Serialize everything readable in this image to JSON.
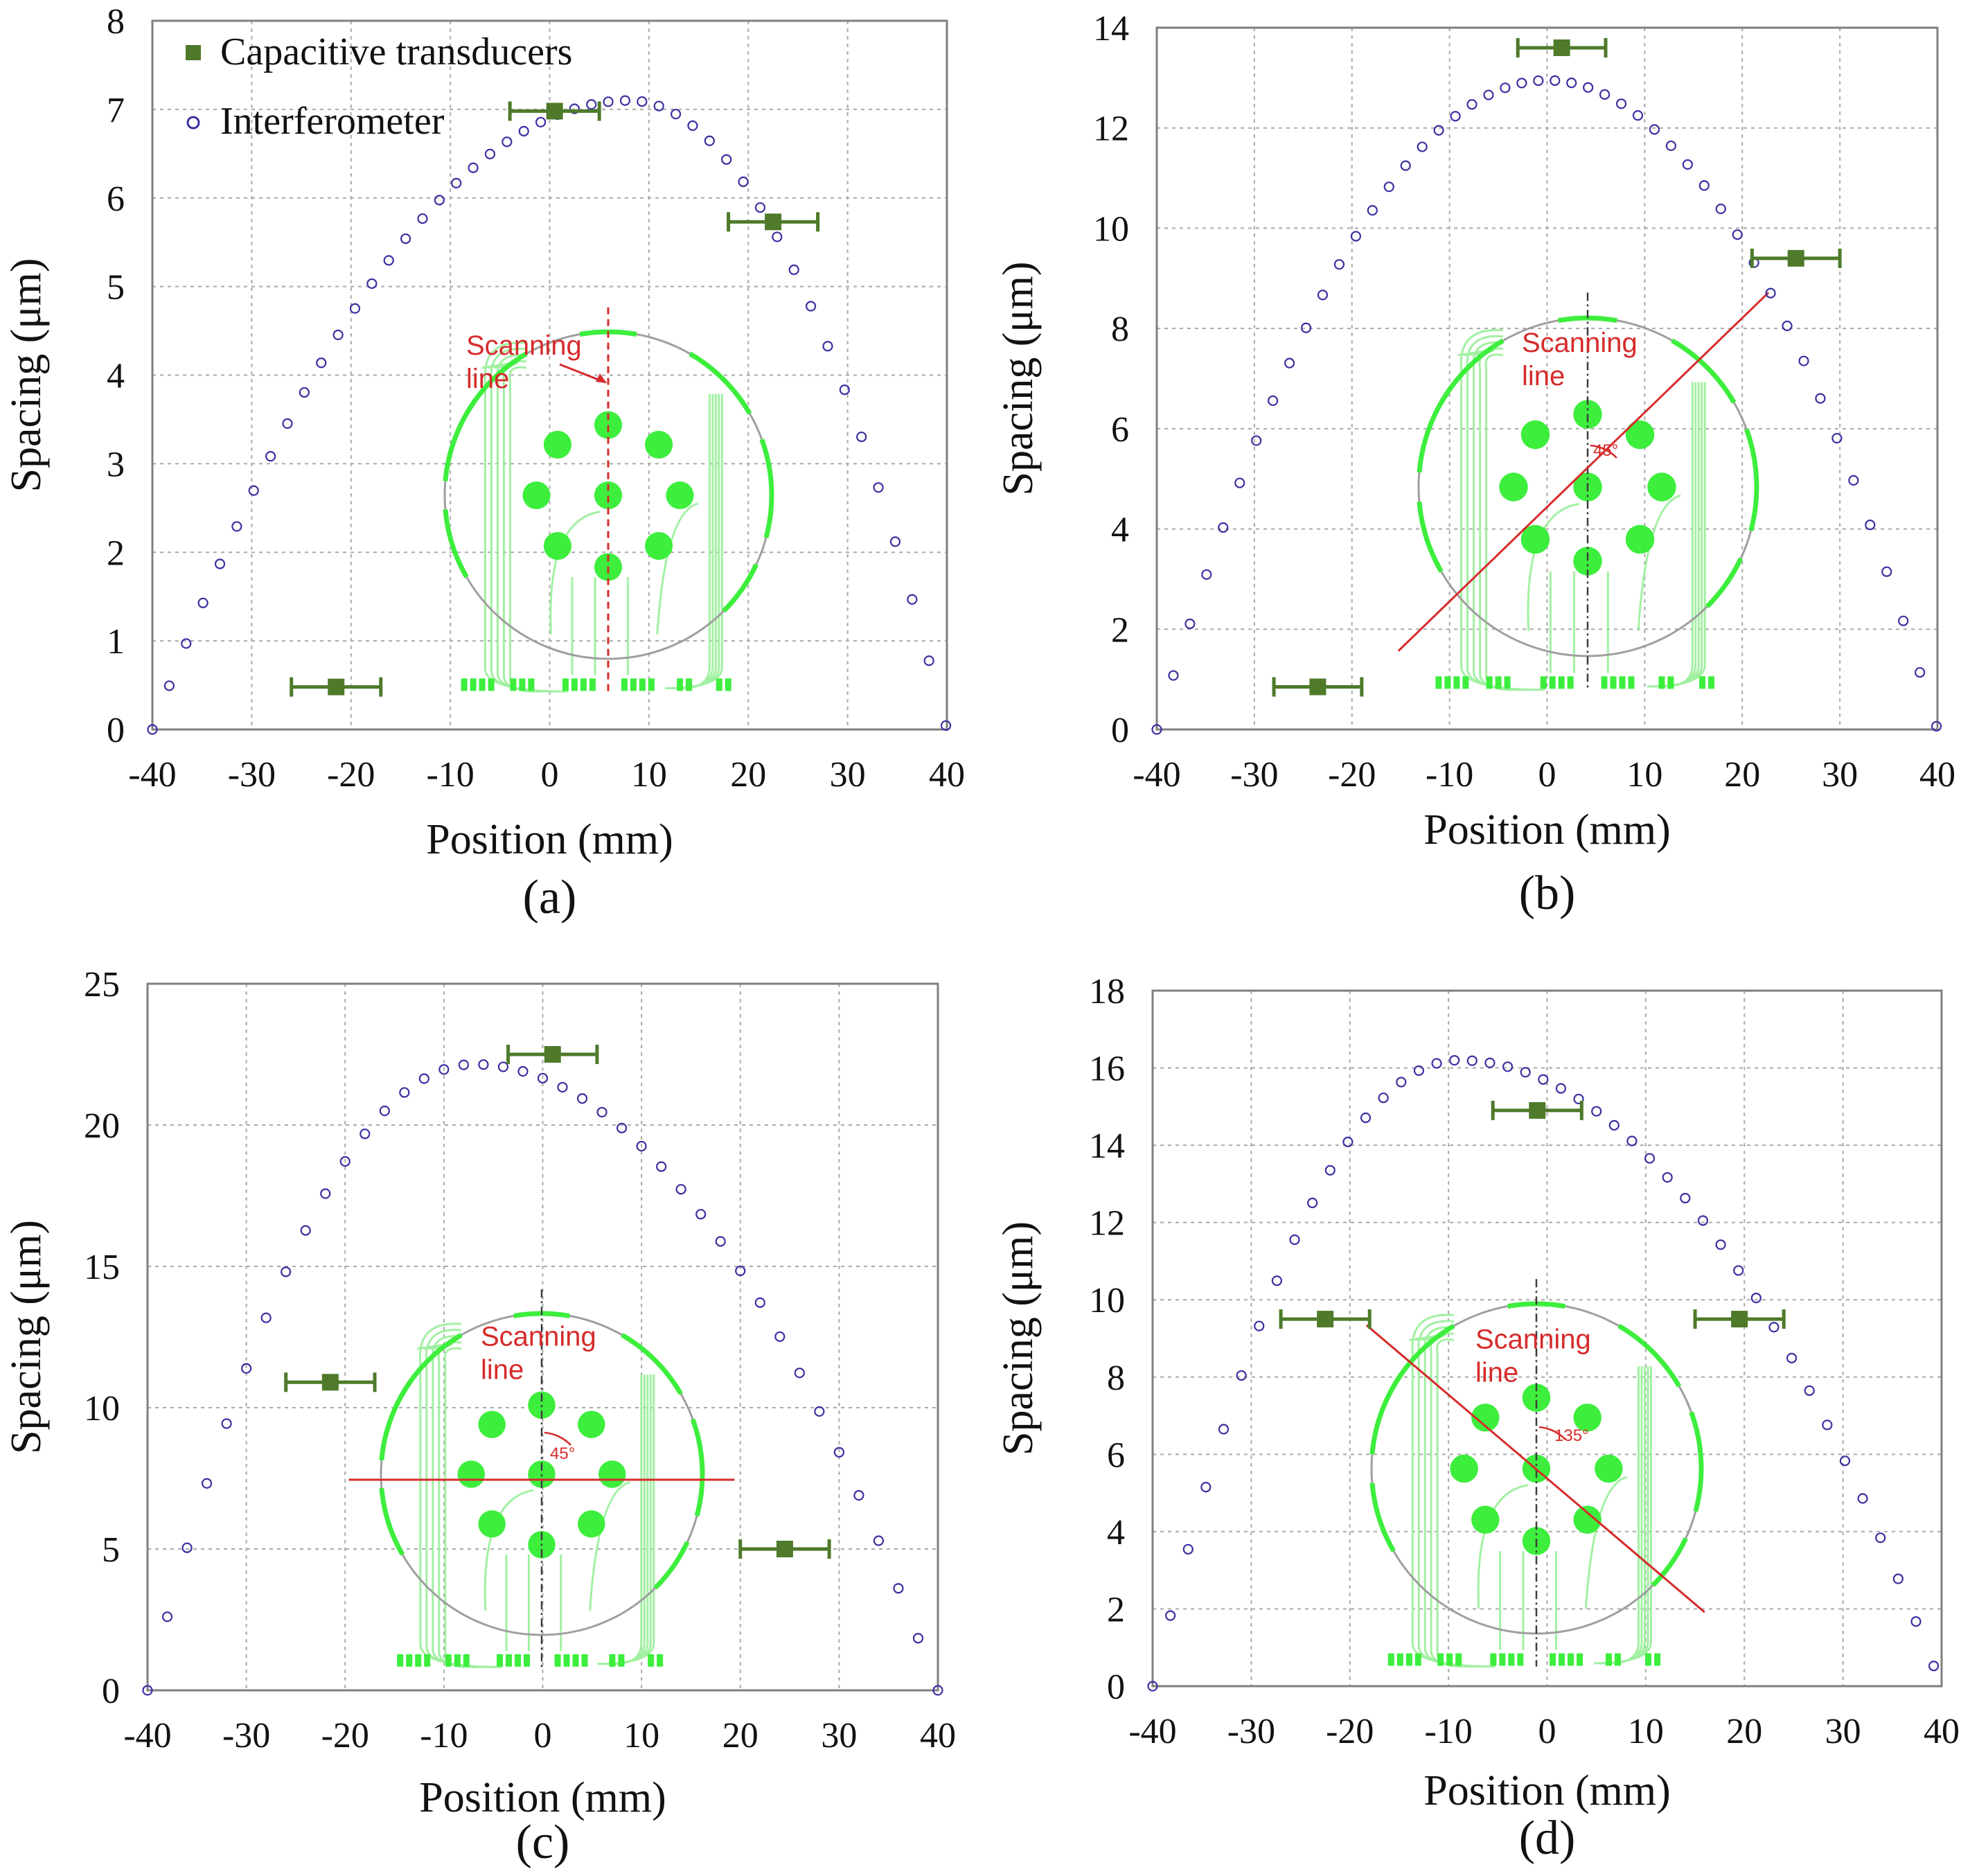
{
  "figure": {
    "legend": {
      "capacitive_label": "Capacitive transducers",
      "interferometer_label": "Interferometer"
    },
    "colors": {
      "interferometer": "#3a30a0",
      "capacitive": "#4e7a2a",
      "grid": "#a9a9a9",
      "frame": "#7f7f7f",
      "scan_line": "#d42020",
      "electrode": "#33ee33",
      "trace": "#9ef09e"
    },
    "inset": {
      "scanning_label_1": "Scanning",
      "scanning_label_2": "line"
    }
  },
  "chart_data": [
    {
      "id": "a",
      "type": "scatter",
      "panel_label": "(a)",
      "xlabel": "Position (mm)",
      "ylabel": "Spacing  (μm)",
      "xlim": [
        -40,
        40
      ],
      "ylim": [
        0,
        8
      ],
      "xticks": [
        -40,
        -30,
        -20,
        -10,
        0,
        10,
        20,
        30,
        40
      ],
      "yticks": [
        0,
        1,
        2,
        3,
        4,
        5,
        6,
        7,
        8
      ],
      "x_tick_labels": [
        "-40",
        "-30",
        "-20",
        "-10",
        "0",
        "10",
        "20",
        "30",
        "40"
      ],
      "y_tick_labels": [
        "0",
        "1",
        "2",
        "3",
        "4",
        "5",
        "6",
        "7",
        "8"
      ],
      "grid": true,
      "legend_position": "top-left",
      "inset_angle": "",
      "series": [
        {
          "name": "Interferometer",
          "model": {
            "peak_x": 8,
            "peak_y": 7.1,
            "x_start": -40,
            "x_end": 40,
            "y_start": 0,
            "y_end": 0,
            "step": 1.7
          }
        },
        {
          "name": "Capacitive transducers",
          "points": [
            {
              "x": -21.5,
              "y": 0.48,
              "xerr": 4.5
            },
            {
              "x": 0.5,
              "y": 6.98,
              "xerr": 4.5
            },
            {
              "x": 22.5,
              "y": 5.73,
              "xerr": 4.5
            }
          ]
        }
      ]
    },
    {
      "id": "b",
      "type": "scatter",
      "panel_label": "(b)",
      "xlabel": "Position (mm)",
      "ylabel": "Spacing  (μm)",
      "xlim": [
        -40,
        40
      ],
      "ylim": [
        0,
        14
      ],
      "xticks": [
        -40,
        -30,
        -20,
        -10,
        0,
        10,
        20,
        30,
        40
      ],
      "yticks": [
        0,
        2,
        4,
        6,
        8,
        10,
        12,
        14
      ],
      "x_tick_labels": [
        "-40",
        "-30",
        "-20",
        "-10",
        "0",
        "10",
        "20",
        "30",
        "40"
      ],
      "y_tick_labels": [
        "0",
        "2",
        "4",
        "6",
        "8",
        "10",
        "12",
        "14"
      ],
      "grid": true,
      "legend_position": "none",
      "inset_angle": "45°",
      "series": [
        {
          "name": "Interferometer",
          "model": {
            "peak_x": 0,
            "peak_y": 12.95,
            "x_start": -40,
            "x_end": 40,
            "y_start": 0,
            "y_end": 0,
            "step": 1.7
          }
        },
        {
          "name": "Capacitive transducers",
          "points": [
            {
              "x": -23.5,
              "y": 0.85,
              "xerr": 4.5
            },
            {
              "x": 1.5,
              "y": 13.6,
              "xerr": 4.5
            },
            {
              "x": 25.5,
              "y": 9.4,
              "xerr": 4.5
            }
          ]
        }
      ]
    },
    {
      "id": "c",
      "type": "scatter",
      "panel_label": "(c)",
      "xlabel": "Position (mm)",
      "ylabel": "Spacing  (μm)",
      "xlim": [
        -40,
        40
      ],
      "ylim": [
        0,
        25
      ],
      "xticks": [
        -40,
        -30,
        -20,
        -10,
        0,
        10,
        20,
        30,
        40
      ],
      "yticks": [
        0,
        5,
        10,
        15,
        20,
        25
      ],
      "x_tick_labels": [
        "-40",
        "-30",
        "-20",
        "-10",
        "0",
        "10",
        "20",
        "30",
        "40"
      ],
      "y_tick_labels": [
        "0",
        "5",
        "10",
        "15",
        "20",
        "25"
      ],
      "grid": true,
      "legend_position": "none",
      "inset_angle": "45°",
      "series": [
        {
          "name": "Interferometer",
          "model": {
            "peak_x": -7,
            "peak_y": 22.15,
            "x_start": -40,
            "x_end": 40,
            "y_start": 0,
            "y_end": 0,
            "step": 2.0
          }
        },
        {
          "name": "Capacitive transducers",
          "points": [
            {
              "x": -21.5,
              "y": 10.9,
              "xerr": 4.5
            },
            {
              "x": 1.0,
              "y": 22.5,
              "xerr": 4.5
            },
            {
              "x": 24.5,
              "y": 5.0,
              "xerr": 4.5
            }
          ]
        }
      ]
    },
    {
      "id": "d",
      "type": "scatter",
      "panel_label": "(d)",
      "xlabel": "Position (mm)",
      "ylabel": "Spacing  (μm)",
      "xlim": [
        -40,
        40
      ],
      "ylim": [
        0,
        18
      ],
      "xticks": [
        -40,
        -30,
        -20,
        -10,
        0,
        10,
        20,
        30,
        40
      ],
      "yticks": [
        0,
        2,
        4,
        6,
        8,
        10,
        12,
        14,
        16,
        18
      ],
      "x_tick_labels": [
        "-40",
        "-30",
        "-20",
        "-10",
        "0",
        "10",
        "20",
        "30",
        "40"
      ],
      "y_tick_labels": [
        "0",
        "2",
        "4",
        "6",
        "8",
        "10",
        "12",
        "14",
        "16",
        "18"
      ],
      "grid": true,
      "legend_position": "none",
      "inset_angle": "135°",
      "series": [
        {
          "name": "Interferometer",
          "model": {
            "peak_x": -9,
            "peak_y": 16.2,
            "x_start": -40,
            "x_end": 40,
            "y_start": 0,
            "y_end": 0,
            "step": 1.8
          }
        },
        {
          "name": "Capacitive transducers",
          "points": [
            {
              "x": -22.5,
              "y": 9.5,
              "xerr": 4.5
            },
            {
              "x": -1.0,
              "y": 14.9,
              "xerr": 4.5
            },
            {
              "x": 19.5,
              "y": 9.5,
              "xerr": 4.5
            }
          ]
        }
      ]
    }
  ]
}
